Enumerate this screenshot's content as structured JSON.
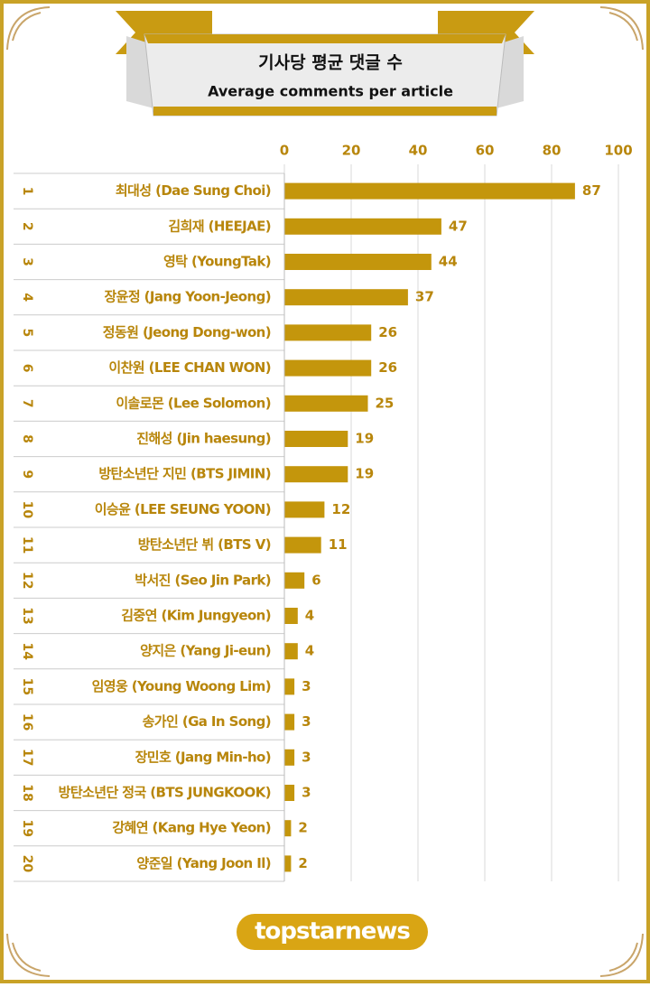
{
  "chart_data": {
    "type": "bar",
    "orientation": "horizontal",
    "title": "기사당 평균 댓글 수",
    "subtitle": "Average comments per article",
    "ranks": [
      1,
      2,
      3,
      4,
      5,
      6,
      7,
      8,
      9,
      10,
      11,
      12,
      13,
      14,
      15,
      16,
      17,
      18,
      19,
      20
    ],
    "categories": [
      "최대성 (Dae Sung Choi)",
      "김희재 (HEEJAE)",
      "영탁 (YoungTak)",
      "장윤정 (Jang Yoon-Jeong)",
      "정동원 (Jeong Dong-won)",
      "이찬원 (LEE CHAN WON)",
      "이솔로몬 (Lee Solomon)",
      "진해성 (Jin haesung)",
      "방탄소년단 지민 (BTS JIMIN)",
      "이승윤 (LEE SEUNG YOON)",
      "방탄소년단 뷔 (BTS V)",
      "박서진 (Seo Jin Park)",
      "김중연 (Kim Jungyeon)",
      "양지은 (Yang Ji-eun)",
      "임영웅 (Young Woong Lim)",
      "송가인 (Ga In Song)",
      "장민호 (Jang Min-ho)",
      "방탄소년단 정국 (BTS JUNGKOOK)",
      "강혜연 (Kang Hye Yeon)",
      "양준일 (Yang Joon Il)"
    ],
    "values": [
      87,
      47,
      44,
      37,
      26,
      26,
      25,
      19,
      19,
      12,
      11,
      6,
      4,
      4,
      3,
      3,
      3,
      3,
      2,
      2
    ],
    "color": "#c4960c",
    "xlim": [
      0,
      100
    ],
    "xticks": [
      0,
      20,
      40,
      60,
      80,
      100
    ],
    "grid": true,
    "brand": "topstarnews"
  }
}
